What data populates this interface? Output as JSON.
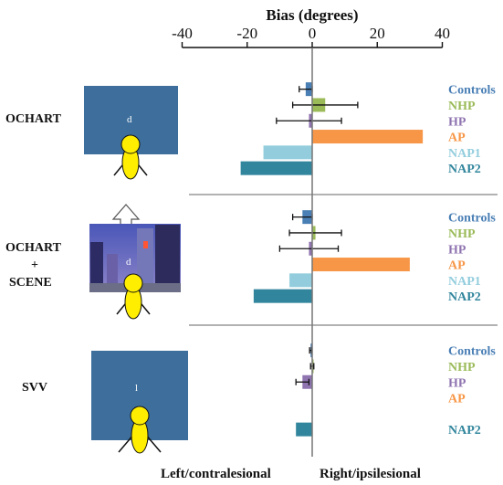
{
  "colors": {
    "Controls": "#4a7fb5",
    "NHP": "#9bbb59",
    "HP": "#8f74b0",
    "AP": "#f79646",
    "NAP1": "#93cddd",
    "NAP2": "#31859c",
    "panel_blue": "#3d6e9c",
    "figure_yellow": "#ffee00"
  },
  "chart_data": {
    "type": "bar",
    "orientation": "horizontal",
    "title": "Bias (degrees)",
    "xlim": [
      -40,
      40
    ],
    "x_ticks": [
      -40,
      -20,
      0,
      20,
      40
    ],
    "x_tick_labels": [
      "-40",
      "-20",
      "0",
      "20",
      "40"
    ],
    "xlabel_left": "Left/contralesional",
    "xlabel_right": "Right/ipsilesional",
    "grid": false,
    "legend": "per-panel labels on right",
    "panels": [
      {
        "name": "OCHART",
        "bars": [
          {
            "group": "Controls",
            "value": -2,
            "err": 2
          },
          {
            "group": "NHP",
            "value": 4,
            "err": 10
          },
          {
            "group": "HP",
            "value": -1,
            "err": 10
          },
          {
            "group": "AP",
            "value": 34,
            "err": null
          },
          {
            "group": "NAP1",
            "value": -15,
            "err": null
          },
          {
            "group": "NAP2",
            "value": -22,
            "err": null
          }
        ]
      },
      {
        "name": "OCHART\n+\nSCENE",
        "bars": [
          {
            "group": "Controls",
            "value": -3,
            "err": 3
          },
          {
            "group": "NHP",
            "value": 1,
            "err": 8
          },
          {
            "group": "HP",
            "value": -1,
            "err": 9
          },
          {
            "group": "AP",
            "value": 30,
            "err": null
          },
          {
            "group": "NAP1",
            "value": -7,
            "err": null
          },
          {
            "group": "NAP2",
            "value": -18,
            "err": null
          }
        ]
      },
      {
        "name": "SVV",
        "bars": [
          {
            "group": "Controls",
            "value": -0.5,
            "err": 0.3
          },
          {
            "group": "NHP",
            "value": 0,
            "err": 0.5
          },
          {
            "group": "HP",
            "value": -3,
            "err": 2
          },
          {
            "group": "AP",
            "value": null,
            "err": null
          },
          {
            "group": "NAP1",
            "value": null,
            "err": null
          },
          {
            "group": "NAP2",
            "value": -5,
            "err": null
          }
        ]
      }
    ]
  },
  "panel_labels": {
    "ochart": "OCHART",
    "scene_line1": "OCHART",
    "scene_line2": "+",
    "scene_line3": "SCENE",
    "svv": "SVV"
  },
  "group_labels": {
    "p1": [
      "Controls",
      "NHP",
      "HP",
      "AP",
      "NAP1",
      "NAP2"
    ],
    "p2": [
      "Controls",
      "NHP",
      "HP",
      "AP",
      "NAP1",
      "NAP2"
    ],
    "p3": [
      "Controls",
      "NHP",
      "HP",
      "AP",
      "NAP2"
    ]
  },
  "stimulus_glyphs": {
    "ochart": "d",
    "scene": "d",
    "svv": "l"
  }
}
